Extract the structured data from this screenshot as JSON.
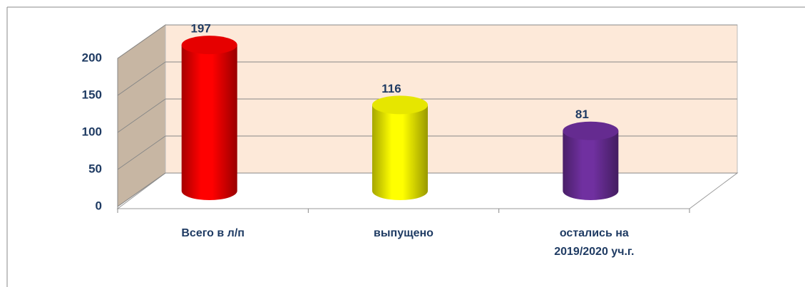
{
  "chart_data": {
    "type": "bar",
    "categories": [
      "Всего в л/п",
      "выпущено",
      "остались на 2019/2020 уч.г."
    ],
    "values": [
      197,
      116,
      81
    ],
    "colors": [
      "#ff0000",
      "#ffff00",
      "#7030a0"
    ],
    "ylim": [
      0,
      200
    ],
    "yticks": [
      0,
      50,
      100,
      150,
      200
    ],
    "grid": true
  }
}
